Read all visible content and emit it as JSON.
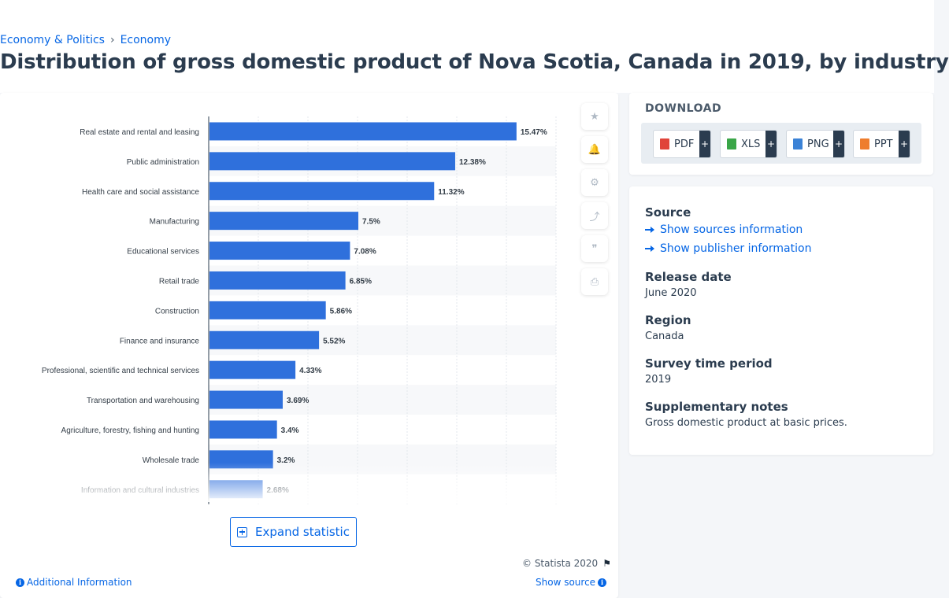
{
  "breadcrumb": {
    "items": [
      "Economy & Politics",
      "Economy"
    ],
    "separator": "›"
  },
  "title": "Distribution of gross domestic product of Nova Scotia, Canada in 2019, by industry",
  "chart_data": {
    "type": "bar",
    "orientation": "horizontal",
    "categories": [
      "Real estate and rental and leasing",
      "Public administration",
      "Health care and social assistance",
      "Manufacturing",
      "Educational services",
      "Retail trade",
      "Construction",
      "Finance and insurance",
      "Professional, scientific and technical services",
      "Transportation and warehousing",
      "Agriculture, forestry, fishing and hunting",
      "Wholesale trade",
      "Information and cultural industries"
    ],
    "values": [
      15.47,
      12.38,
      11.32,
      7.5,
      7.08,
      6.85,
      5.86,
      5.52,
      4.33,
      3.69,
      3.4,
      3.2,
      2.68
    ],
    "data_labels": [
      "15.47%",
      "12.38%",
      "11.32%",
      "7.5%",
      "7.08%",
      "6.85%",
      "5.86%",
      "5.52%",
      "4.33%",
      "3.69%",
      "3.4%",
      "3.2%",
      "2.68%"
    ],
    "xlim": [
      0,
      17.5
    ],
    "grid": true,
    "bar_color": "#2f70dc"
  },
  "tools": [
    {
      "name": "favorite-star-icon",
      "glyph": "★"
    },
    {
      "name": "notification-bell-icon",
      "glyph": "🔔"
    },
    {
      "name": "settings-gear-icon",
      "glyph": "⚙"
    },
    {
      "name": "share-icon",
      "glyph": "⤴"
    },
    {
      "name": "quote-icon",
      "glyph": "❞"
    },
    {
      "name": "print-icon",
      "glyph": "⎙"
    }
  ],
  "expand_label": "Expand statistic",
  "copyright": "© Statista 2020",
  "additional_info": "Additional Information",
  "show_source": "Show source",
  "download": {
    "title": "DOWNLOAD",
    "buttons": [
      {
        "label": "PDF",
        "color": "#e0443a"
      },
      {
        "label": "XLS",
        "color": "#3aa648"
      },
      {
        "label": "PNG",
        "color": "#3b82d6"
      },
      {
        "label": "PPT",
        "color": "#ee7d2d"
      }
    ],
    "plus": "+"
  },
  "info": {
    "source_label": "Source",
    "show_sources": "Show sources information",
    "show_publisher": "Show publisher information",
    "release_date_label": "Release date",
    "release_date": "June 2020",
    "region_label": "Region",
    "region": "Canada",
    "survey_label": "Survey time period",
    "survey": "2019",
    "notes_label": "Supplementary notes",
    "notes": "Gross domestic product at basic prices."
  }
}
